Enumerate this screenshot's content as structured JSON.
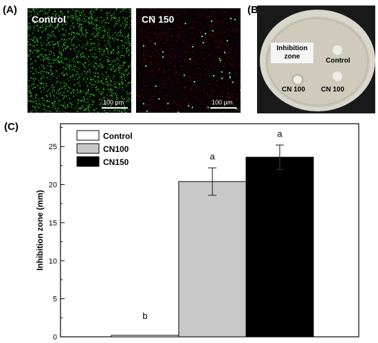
{
  "figure": {
    "panel_a_label": "(A)",
    "panel_b_label": "(B)",
    "panel_c_label": "(C)"
  },
  "panel_a": {
    "control": {
      "title": "Control",
      "scale_label": "100 μm"
    },
    "cn150": {
      "title": "CN 150",
      "scale_label": "100 μm"
    }
  },
  "panel_b": {
    "inhibition_zone_label_line1": "Inhibition",
    "inhibition_zone_label_line2": "zone",
    "control_label": "Control",
    "cn100_left_label": "CN 100",
    "cn100_right_label": "CN 100"
  },
  "chart_data": {
    "type": "bar",
    "categories": [
      "Control",
      "CN100",
      "CN150"
    ],
    "values": [
      0.2,
      20.4,
      23.6
    ],
    "error_bars": [
      0,
      1.8,
      1.6
    ],
    "significance_labels": [
      "b",
      "a",
      "a"
    ],
    "colors": [
      "#ffffff",
      "#c8c8c8",
      "#000000"
    ],
    "legend": [
      "Control",
      "CN100",
      "CN150"
    ],
    "legend_position": "top-left",
    "ylabel": "Inhibition zone (mm)",
    "xlabel": "",
    "ylim": [
      0,
      28
    ],
    "yticks": [
      0,
      5,
      10,
      15,
      20,
      25
    ],
    "grid": false
  }
}
